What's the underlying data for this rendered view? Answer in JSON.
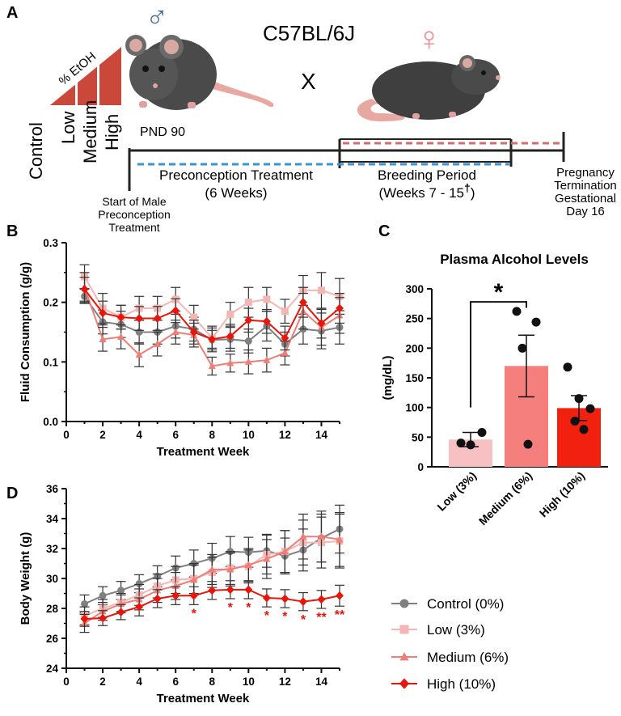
{
  "colors": {
    "control": "#808080",
    "low": "#f4b6b2",
    "medium": "#ef7e76",
    "high": "#e8150a",
    "bar_low": "#f7c0c2",
    "bar_medium": "#f47f7d",
    "bar_high": "#f2200e",
    "male_symbol": "#4a6fa5",
    "female_symbol": "#ef8d99",
    "timeline_red_dash": "#d86b6b",
    "timeline_blue_dash": "#3a95d3",
    "ramp": "#c9483a"
  },
  "panel_a": {
    "label": "A",
    "strain": "C57BL/6J",
    "cross": "X",
    "male_age": "PND 90",
    "etoh_label": "% EtOH",
    "dose_groups": [
      "Control",
      "Low",
      "Medium",
      "High"
    ],
    "start_label": [
      "Start of Male",
      "Preconception",
      "Treatment"
    ],
    "preconception_label": [
      "Preconception Treatment",
      "(6 Weeks)"
    ],
    "breeding_label": [
      "Breeding Period",
      "(Weeks 7 - 15"
    ],
    "breeding_dagger": "†",
    "breeding_close": ")",
    "termination_label": [
      "Pregnancy",
      "Termination",
      "Gestational",
      "Day 16"
    ],
    "male_symbol": "♂",
    "female_symbol": "♀"
  },
  "legend": {
    "items": [
      {
        "label": "Control (0%)",
        "marker": "circle",
        "color_key": "control"
      },
      {
        "label": "Low (3%)",
        "marker": "square",
        "color_key": "low"
      },
      {
        "label": "Medium (6%)",
        "marker": "triangle",
        "color_key": "medium"
      },
      {
        "label": "High (10%)",
        "marker": "diamond",
        "color_key": "high"
      }
    ]
  },
  "chart_data": [
    {
      "panel": "B",
      "type": "line",
      "xlabel": "Treatment Week",
      "ylabel": "Fluid Consumption (g/g)",
      "xlim": [
        0,
        15
      ],
      "ylim": [
        0,
        0.3
      ],
      "xticks": [
        0,
        2,
        4,
        6,
        8,
        10,
        12,
        14
      ],
      "yticks": [
        0.0,
        0.1,
        0.2,
        0.3
      ],
      "ytick_labels": [
        "0.0",
        "0.1",
        "0.2",
        "0.3"
      ],
      "x": [
        1,
        2,
        3,
        4,
        5,
        6,
        7,
        8,
        9,
        10,
        11,
        12,
        13,
        14,
        15
      ],
      "series": [
        {
          "name": "Control (0%)",
          "color_key": "control",
          "marker": "circle",
          "values": [
            0.21,
            0.167,
            0.163,
            0.15,
            0.15,
            0.16,
            0.155,
            0.137,
            0.138,
            0.135,
            0.16,
            0.13,
            0.155,
            0.152,
            0.158
          ],
          "err": [
            0.012,
            0.02,
            0.022,
            0.02,
            0.02,
            0.02,
            0.02,
            0.02,
            0.02,
            0.02,
            0.025,
            0.02,
            0.025,
            0.03,
            0.028
          ]
        },
        {
          "name": "Low (3%)",
          "color_key": "low",
          "marker": "square",
          "values": [
            0.243,
            0.19,
            0.175,
            0.19,
            0.19,
            0.205,
            0.175,
            0.14,
            0.18,
            0.2,
            0.205,
            0.185,
            0.22,
            0.22,
            0.21
          ],
          "err": [
            0.02,
            0.025,
            0.02,
            0.02,
            0.02,
            0.02,
            0.02,
            0.02,
            0.02,
            0.025,
            0.02,
            0.02,
            0.025,
            0.03,
            0.03
          ]
        },
        {
          "name": "Medium (6%)",
          "color_key": "medium",
          "marker": "triangle",
          "values": [
            0.225,
            0.138,
            0.142,
            0.112,
            0.13,
            0.15,
            0.145,
            0.093,
            0.098,
            0.1,
            0.103,
            0.115,
            0.185,
            0.158,
            0.178
          ],
          "err": [
            0.025,
            0.02,
            0.02,
            0.02,
            0.02,
            0.02,
            0.02,
            0.015,
            0.015,
            0.02,
            0.02,
            0.02,
            0.03,
            0.03,
            0.03
          ]
        },
        {
          "name": "High (10%)",
          "color_key": "high",
          "marker": "diamond",
          "values": [
            0.222,
            0.182,
            0.175,
            0.173,
            0.173,
            0.186,
            0.15,
            0.138,
            0.143,
            0.17,
            0.168,
            0.14,
            0.2,
            0.165,
            0.19
          ],
          "err": [
            0.02,
            0.02,
            0.02,
            0.02,
            0.02,
            0.02,
            0.02,
            0.015,
            0.02,
            0.02,
            0.02,
            0.02,
            0.025,
            0.025,
            0.025
          ]
        }
      ]
    },
    {
      "panel": "C",
      "type": "bar",
      "title": "Plasma Alcohol Levels",
      "xlabel": "",
      "ylabel": "(mg/dL)",
      "ylim": [
        0,
        300
      ],
      "yticks": [
        0,
        50,
        100,
        150,
        200,
        250,
        300
      ],
      "categories": [
        "Low (3%)",
        "Medium (6%)",
        "High (10%)"
      ],
      "color_keys": [
        "bar_low",
        "bar_medium",
        "bar_high"
      ],
      "values": [
        46,
        170,
        99
      ],
      "sem": [
        12,
        52,
        21
      ],
      "points": [
        [
          40,
          58,
          37
        ],
        [
          262,
          244,
          200,
          38
        ],
        [
          168,
          115,
          98,
          77,
          63
        ]
      ],
      "significance": {
        "from": 0,
        "to": 1,
        "label": "*"
      }
    },
    {
      "panel": "D",
      "type": "line",
      "xlabel": "Treatment Week",
      "ylabel": "Body Weight (g)",
      "xlim": [
        0,
        15
      ],
      "ylim": [
        24,
        36
      ],
      "xticks": [
        0,
        2,
        4,
        6,
        8,
        10,
        12,
        14
      ],
      "yticks": [
        24,
        26,
        28,
        30,
        32,
        34,
        36
      ],
      "x": [
        1,
        2,
        3,
        4,
        5,
        6,
        7,
        8,
        9,
        10,
        11,
        12,
        13,
        14,
        15
      ],
      "series": [
        {
          "name": "Control (0%)",
          "color_key": "control",
          "marker": "circle",
          "values": [
            28.3,
            28.85,
            29.2,
            29.65,
            30.15,
            30.7,
            31.0,
            31.35,
            31.8,
            31.75,
            31.85,
            31.5,
            31.9,
            32.7,
            33.3
          ],
          "err": [
            0.6,
            0.6,
            0.6,
            0.6,
            0.7,
            0.8,
            0.9,
            1.0,
            1.0,
            1.0,
            1.1,
            1.2,
            1.4,
            1.6,
            1.6
          ]
        },
        {
          "name": "Low (3%)",
          "color_key": "low",
          "marker": "square",
          "values": [
            27.5,
            28.0,
            28.4,
            28.9,
            29.5,
            29.9,
            30.0,
            30.4,
            30.7,
            30.8,
            31.6,
            31.8,
            32.4,
            32.4,
            32.5
          ],
          "err": [
            0.6,
            0.6,
            0.6,
            0.7,
            0.8,
            0.9,
            1.0,
            1.0,
            1.1,
            1.1,
            1.3,
            1.4,
            1.5,
            1.7,
            1.8
          ]
        },
        {
          "name": "Medium (6%)",
          "color_key": "medium",
          "marker": "triangle",
          "values": [
            27.0,
            27.8,
            28.3,
            28.6,
            29.2,
            29.5,
            29.9,
            30.6,
            30.6,
            30.9,
            31.3,
            31.8,
            32.8,
            32.8,
            32.6
          ],
          "err": [
            0.6,
            0.6,
            0.6,
            0.7,
            0.8,
            0.9,
            1.0,
            1.0,
            1.1,
            1.1,
            1.3,
            1.4,
            1.5,
            1.7,
            1.8
          ]
        },
        {
          "name": "High (10%)",
          "color_key": "high",
          "marker": "diamond",
          "values": [
            27.3,
            27.35,
            27.75,
            28.1,
            28.65,
            28.85,
            28.85,
            29.2,
            29.25,
            29.25,
            28.7,
            28.65,
            28.45,
            28.6,
            28.85
          ],
          "err": [
            0.5,
            0.5,
            0.5,
            0.6,
            0.6,
            0.6,
            0.6,
            0.6,
            0.6,
            0.6,
            0.6,
            0.6,
            0.6,
            0.6,
            0.7
          ]
        }
      ],
      "significance_markers": [
        {
          "x": 7,
          "label": "*"
        },
        {
          "x": 9,
          "label": "*"
        },
        {
          "x": 10,
          "label": "*"
        },
        {
          "x": 11,
          "label": "*"
        },
        {
          "x": 12,
          "label": "*"
        },
        {
          "x": 13,
          "label": "*"
        },
        {
          "x": 14,
          "label": "**"
        },
        {
          "x": 15,
          "label": "**"
        }
      ]
    }
  ]
}
